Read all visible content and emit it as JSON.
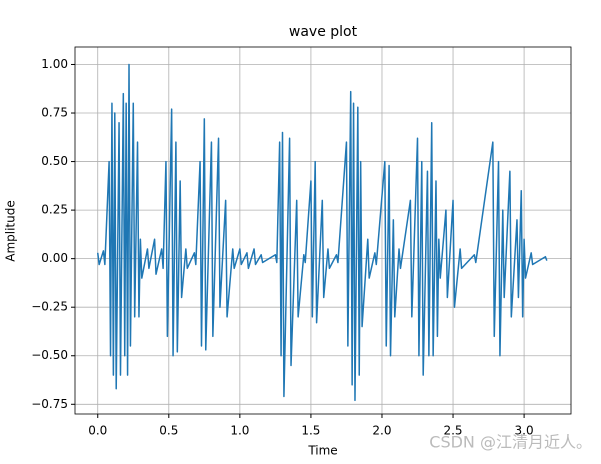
{
  "chart_data": {
    "type": "line",
    "title": "wave plot",
    "x_label": "Time",
    "y_label": "Amplitude",
    "watermark": "CSDN @江清月近人。",
    "xlim": [
      -0.16,
      3.33
    ],
    "ylim": [
      -0.8,
      1.09
    ],
    "grid": true,
    "xticks": [
      {
        "value": 0,
        "label": "0.0"
      },
      0.5,
      {
        "value": 1,
        "label": "1.0"
      },
      1.5,
      {
        "value": 2,
        "label": "2.0"
      },
      2.5,
      {
        "value": 3,
        "label": "3.0"
      }
    ],
    "yticks": [
      {
        "value": -0.75,
        "label": "−0.75"
      },
      {
        "value": -0.5,
        "label": "−0.50"
      },
      {
        "value": -0.25,
        "label": "−0.25"
      },
      {
        "value": 0,
        "label": "0.00"
      },
      0.25,
      {
        "value": 0.5,
        "label": "0.50"
      },
      0.75,
      {
        "value": 1,
        "label": "1.00"
      }
    ],
    "series": [
      {
        "color": "#1f77b4",
        "x": [
          0.0,
          0.01,
          0.04,
          0.05,
          0.08,
          0.09,
          0.1,
          0.11,
          0.12,
          0.13,
          0.15,
          0.16,
          0.18,
          0.19,
          0.2,
          0.21,
          0.22,
          0.23,
          0.25,
          0.26,
          0.28,
          0.29,
          0.3,
          0.31,
          0.35,
          0.36,
          0.4,
          0.41,
          0.45,
          0.46,
          0.48,
          0.49,
          0.52,
          0.53,
          0.55,
          0.56,
          0.58,
          0.59,
          0.62,
          0.63,
          0.68,
          0.69,
          0.72,
          0.73,
          0.75,
          0.76,
          0.8,
          0.81,
          0.85,
          0.86,
          0.9,
          0.91,
          0.95,
          0.96,
          1.0,
          1.01,
          1.05,
          1.06,
          1.1,
          1.11,
          1.15,
          1.16,
          1.25,
          1.26,
          1.28,
          1.29,
          1.3,
          1.31,
          1.35,
          1.36,
          1.4,
          1.41,
          1.45,
          1.46,
          1.5,
          1.51,
          1.53,
          1.54,
          1.58,
          1.59,
          1.62,
          1.63,
          1.68,
          1.69,
          1.75,
          1.76,
          1.78,
          1.79,
          1.8,
          1.81,
          1.83,
          1.84,
          1.85,
          1.86,
          1.9,
          1.91,
          1.95,
          1.96,
          2.02,
          2.03,
          2.05,
          2.06,
          2.08,
          2.09,
          2.12,
          2.13,
          2.2,
          2.21,
          2.25,
          2.26,
          2.28,
          2.29,
          2.32,
          2.33,
          2.35,
          2.36,
          2.38,
          2.39,
          2.4,
          2.41,
          2.45,
          2.46,
          2.5,
          2.51,
          2.55,
          2.56,
          2.65,
          2.66,
          2.78,
          2.79,
          2.82,
          2.83,
          2.85,
          2.86,
          2.9,
          2.91,
          2.95,
          2.96,
          2.98,
          2.99,
          3.0,
          3.01,
          3.05,
          3.06,
          3.15,
          3.16
        ],
        "values": [
          0.03,
          -0.03,
          0.04,
          -0.03,
          0.5,
          -0.5,
          0.8,
          -0.6,
          0.75,
          -0.67,
          0.7,
          -0.6,
          0.85,
          -0.5,
          0.8,
          -0.6,
          1.0,
          -0.45,
          0.8,
          -0.3,
          0.6,
          -0.3,
          0.1,
          -0.1,
          0.05,
          -0.05,
          0.1,
          -0.08,
          0.05,
          -0.05,
          0.5,
          -0.4,
          0.77,
          -0.5,
          0.6,
          -0.48,
          0.4,
          -0.2,
          0.05,
          -0.05,
          0.03,
          -0.03,
          0.5,
          -0.45,
          0.72,
          -0.47,
          0.6,
          -0.4,
          0.62,
          -0.25,
          0.3,
          -0.3,
          0.05,
          -0.05,
          0.05,
          -0.03,
          0.03,
          -0.05,
          0.05,
          -0.03,
          0.02,
          -0.02,
          0.02,
          -0.02,
          0.6,
          -0.5,
          0.65,
          -0.71,
          0.62,
          -0.55,
          0.3,
          -0.3,
          0.02,
          -0.02,
          0.4,
          -0.3,
          0.5,
          -0.33,
          0.3,
          -0.2,
          0.05,
          -0.05,
          0.02,
          -0.02,
          0.6,
          -0.45,
          0.86,
          -0.65,
          0.8,
          -0.73,
          0.78,
          -0.6,
          0.5,
          -0.35,
          0.1,
          -0.1,
          0.03,
          -0.03,
          0.5,
          -0.45,
          0.48,
          -0.5,
          0.2,
          -0.3,
          0.05,
          -0.05,
          0.3,
          -0.3,
          0.62,
          -0.5,
          0.5,
          -0.6,
          0.45,
          -0.5,
          0.7,
          -0.5,
          0.4,
          -0.4,
          0.1,
          -0.1,
          0.25,
          -0.2,
          0.3,
          -0.25,
          0.05,
          -0.05,
          0.02,
          -0.02,
          0.6,
          -0.4,
          0.5,
          -0.5,
          0.25,
          -0.2,
          0.45,
          -0.3,
          0.2,
          -0.2,
          0.35,
          -0.3,
          0.1,
          -0.1,
          0.03,
          -0.03,
          0.01,
          -0.01
        ]
      }
    ]
  }
}
